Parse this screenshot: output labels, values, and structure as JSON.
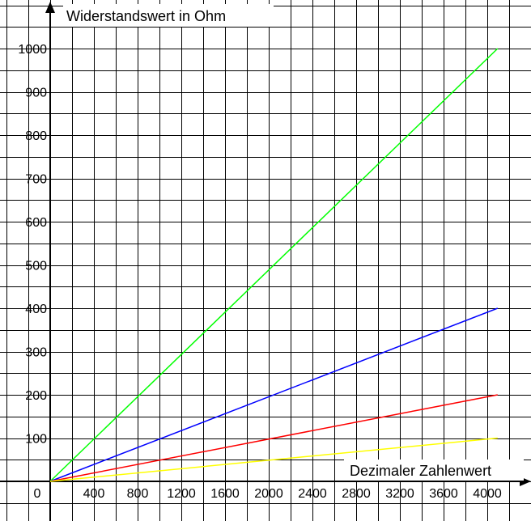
{
  "chart_data": {
    "type": "line",
    "title": "",
    "xlabel": "Dezimaler Zahlenwert",
    "ylabel": "Widerstandswert in Ohm",
    "xlim": [
      -1080,
      4400
    ],
    "ylim": [
      -160,
      1120
    ],
    "grid": true,
    "x_ticks": [
      {
        "value": 0,
        "label": "0"
      },
      {
        "value": 400,
        "label": "400"
      },
      {
        "value": 800,
        "label": "800"
      },
      {
        "value": 1200,
        "label": "1200"
      },
      {
        "value": 1600,
        "label": "1600"
      },
      {
        "value": 2000,
        "label": "2000"
      },
      {
        "value": 2400,
        "label": "2400"
      },
      {
        "value": 2800,
        "label": "2800"
      },
      {
        "value": 3200,
        "label": "3200"
      },
      {
        "value": 3600,
        "label": "3600"
      },
      {
        "value": 4000,
        "label": "4000"
      }
    ],
    "y_ticks": [
      {
        "value": 100,
        "label": "100"
      },
      {
        "value": 200,
        "label": "200"
      },
      {
        "value": 300,
        "label": "300"
      },
      {
        "value": 400,
        "label": "400"
      },
      {
        "value": 500,
        "label": "500"
      },
      {
        "value": 600,
        "label": "600"
      },
      {
        "value": 700,
        "label": "700"
      },
      {
        "value": 800,
        "label": "800"
      },
      {
        "value": 900,
        "label": "900"
      },
      {
        "value": 1000,
        "label": "1000"
      }
    ],
    "series": [
      {
        "color": "#00ff00",
        "x": [
          0,
          4095
        ],
        "y": [
          0,
          1000
        ]
      },
      {
        "color": "#0000ff",
        "x": [
          0,
          4095
        ],
        "y": [
          0,
          400
        ]
      },
      {
        "color": "#ff0000",
        "x": [
          0,
          4095
        ],
        "y": [
          0,
          200
        ]
      },
      {
        "color": "#ffff00",
        "x": [
          0,
          4095
        ],
        "y": [
          0,
          100
        ]
      }
    ]
  }
}
